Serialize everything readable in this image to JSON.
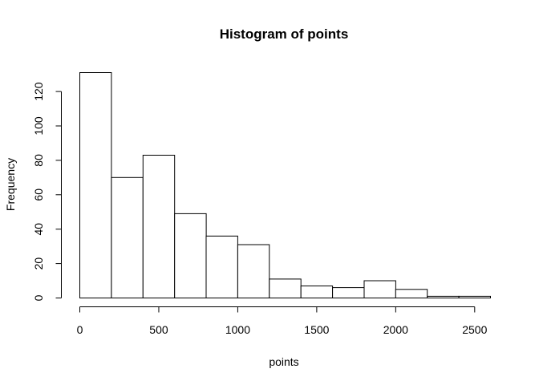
{
  "chart_data": {
    "type": "bar",
    "title": "Histogram of points",
    "xlabel": "points",
    "ylabel": "Frequency",
    "bin_edges": [
      0,
      200,
      400,
      600,
      800,
      1000,
      1200,
      1400,
      1600,
      1800,
      2000,
      2200,
      2400,
      2600
    ],
    "values": [
      131,
      70,
      83,
      49,
      36,
      31,
      11,
      7,
      6,
      10,
      5,
      1,
      1
    ],
    "xlim": [
      0,
      2600
    ],
    "ylim": [
      0,
      131
    ],
    "x_ticks": [
      0,
      500,
      1000,
      1500,
      2000,
      2500
    ],
    "x_tick_labels": [
      "0",
      "500",
      "1000",
      "1500",
      "2000",
      "2500"
    ],
    "y_ticks": [
      0,
      20,
      40,
      60,
      80,
      100,
      120
    ],
    "y_tick_labels": [
      "0",
      "20",
      "40",
      "60",
      "80",
      "100",
      "120"
    ],
    "grid": false,
    "legend": "none"
  }
}
